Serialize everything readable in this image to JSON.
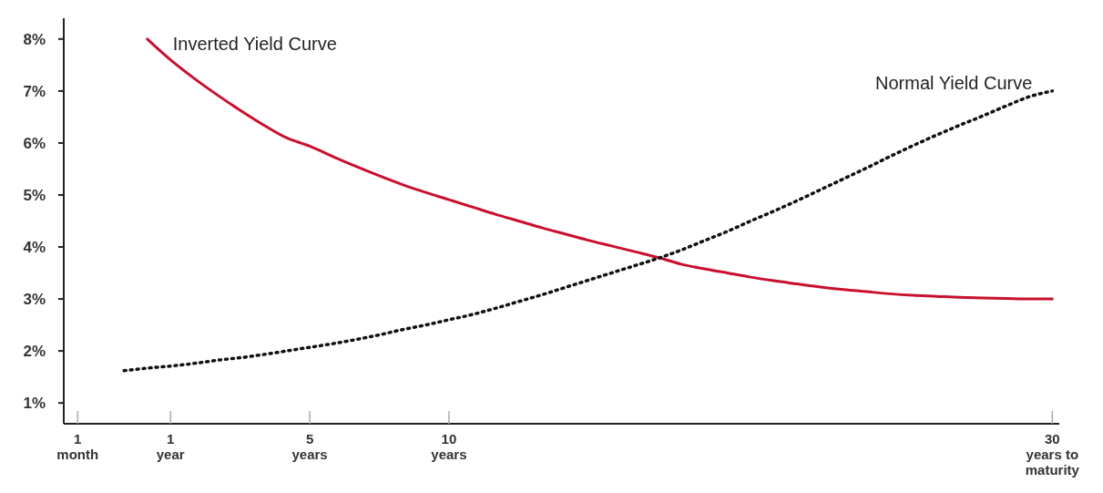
{
  "chart_data": {
    "type": "line",
    "ylim": [
      0.6,
      8.4
    ],
    "categories": [
      "1\nmonth",
      null,
      null,
      null,
      "1\nyear",
      null,
      null,
      null,
      null,
      null,
      "5\nyears",
      null,
      null,
      null,
      null,
      null,
      "10\nyears",
      null,
      null,
      null,
      null,
      null,
      null,
      null,
      null,
      null,
      null,
      null,
      null,
      null,
      null,
      null,
      null,
      null,
      null,
      null,
      null,
      null,
      null,
      null,
      null,
      null,
      "30\nyears to\nmaturity"
    ],
    "yticks": [
      {
        "value": 1,
        "label": "1%"
      },
      {
        "value": 2,
        "label": "2%"
      },
      {
        "value": 3,
        "label": "3%"
      },
      {
        "value": 4,
        "label": "4%"
      },
      {
        "value": 5,
        "label": "5%"
      },
      {
        "value": 6,
        "label": "6%"
      },
      {
        "value": 7,
        "label": "7%"
      },
      {
        "value": 8,
        "label": "8%"
      }
    ],
    "grid": false,
    "legend": false,
    "series": [
      {
        "name": "Inverted Yield Curve",
        "color": "#c8102e",
        "line_style": "solid",
        "values": [
          null,
          null,
          null,
          8.0,
          7.6,
          7.25,
          6.93,
          6.63,
          6.35,
          6.1,
          5.94,
          5.74,
          5.55,
          5.37,
          5.2,
          5.05,
          4.91,
          4.77,
          4.63,
          4.5,
          4.37,
          4.25,
          4.13,
          4.02,
          3.91,
          3.8,
          3.67,
          3.58,
          3.5,
          3.42,
          3.35,
          3.29,
          3.23,
          3.18,
          3.14,
          3.1,
          3.07,
          3.05,
          3.03,
          3.02,
          3.01,
          3.0,
          3.0
        ]
      },
      {
        "name": "Normal Yield Curve",
        "color": "#111111",
        "line_style": "dotted",
        "values": [
          null,
          null,
          1.62,
          1.67,
          1.71,
          1.76,
          1.82,
          1.87,
          1.93,
          2.0,
          2.07,
          2.14,
          2.22,
          2.31,
          2.41,
          2.5,
          2.6,
          2.7,
          2.82,
          2.95,
          3.08,
          3.22,
          3.36,
          3.5,
          3.64,
          3.78,
          3.94,
          4.12,
          4.3,
          4.5,
          4.69,
          4.89,
          5.1,
          5.31,
          5.52,
          5.74,
          5.95,
          6.15,
          6.34,
          6.52,
          6.71,
          6.89,
          7.0
        ]
      }
    ]
  }
}
